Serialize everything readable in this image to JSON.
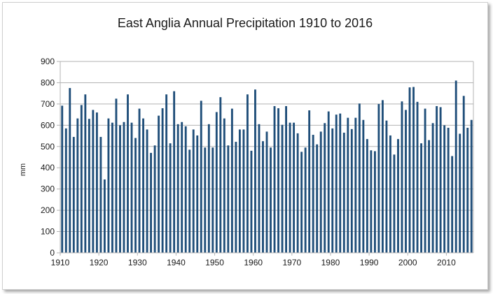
{
  "chart_data": {
    "type": "bar",
    "title": "East Anglia Annual Precipitation 1910 to 2016",
    "xlabel": "",
    "ylabel": "mm",
    "ylim": [
      0,
      900
    ],
    "yticks": [
      0,
      100,
      200,
      300,
      400,
      500,
      600,
      700,
      800,
      900
    ],
    "xticks": [
      1910,
      1920,
      1930,
      1940,
      1950,
      1960,
      1970,
      1980,
      1990,
      2000,
      2010
    ],
    "grid": "horizontal",
    "legend": "none",
    "bar_color": "#1f4e79",
    "x": [
      1910,
      1911,
      1912,
      1913,
      1914,
      1915,
      1916,
      1917,
      1918,
      1919,
      1920,
      1921,
      1922,
      1923,
      1924,
      1925,
      1926,
      1927,
      1928,
      1929,
      1930,
      1931,
      1932,
      1933,
      1934,
      1935,
      1936,
      1937,
      1938,
      1939,
      1940,
      1941,
      1942,
      1943,
      1944,
      1945,
      1946,
      1947,
      1948,
      1949,
      1950,
      1951,
      1952,
      1953,
      1954,
      1955,
      1956,
      1957,
      1958,
      1959,
      1960,
      1961,
      1962,
      1963,
      1964,
      1965,
      1966,
      1967,
      1968,
      1969,
      1970,
      1971,
      1972,
      1973,
      1974,
      1975,
      1976,
      1977,
      1978,
      1979,
      1980,
      1981,
      1982,
      1983,
      1984,
      1985,
      1986,
      1987,
      1988,
      1989,
      1990,
      1991,
      1992,
      1993,
      1994,
      1995,
      1996,
      1997,
      1998,
      1999,
      2000,
      2001,
      2002,
      2003,
      2004,
      2005,
      2006,
      2007,
      2008,
      2009,
      2010,
      2011,
      2012,
      2013,
      2014,
      2015,
      2016
    ],
    "values": [
      692,
      585,
      775,
      545,
      632,
      695,
      745,
      630,
      672,
      660,
      545,
      345,
      632,
      612,
      725,
      600,
      615,
      745,
      612,
      540,
      678,
      632,
      580,
      470,
      505,
      645,
      680,
      745,
      515,
      760,
      605,
      615,
      595,
      485,
      580,
      552,
      715,
      495,
      605,
      495,
      662,
      732,
      632,
      505,
      678,
      522,
      580,
      580,
      745,
      480,
      768,
      605,
      525,
      570,
      495,
      690,
      680,
      602,
      690,
      612,
      612,
      562,
      475,
      495,
      670,
      555,
      510,
      570,
      610,
      665,
      585,
      650,
      655,
      565,
      635,
      582,
      635,
      702,
      625,
      535,
      482,
      478,
      700,
      718,
      622,
      552,
      462,
      535,
      712,
      672,
      778,
      780,
      710,
      515,
      678,
      530,
      610,
      690,
      685,
      600,
      588,
      455,
      810,
      560,
      738,
      588,
      625
    ]
  }
}
